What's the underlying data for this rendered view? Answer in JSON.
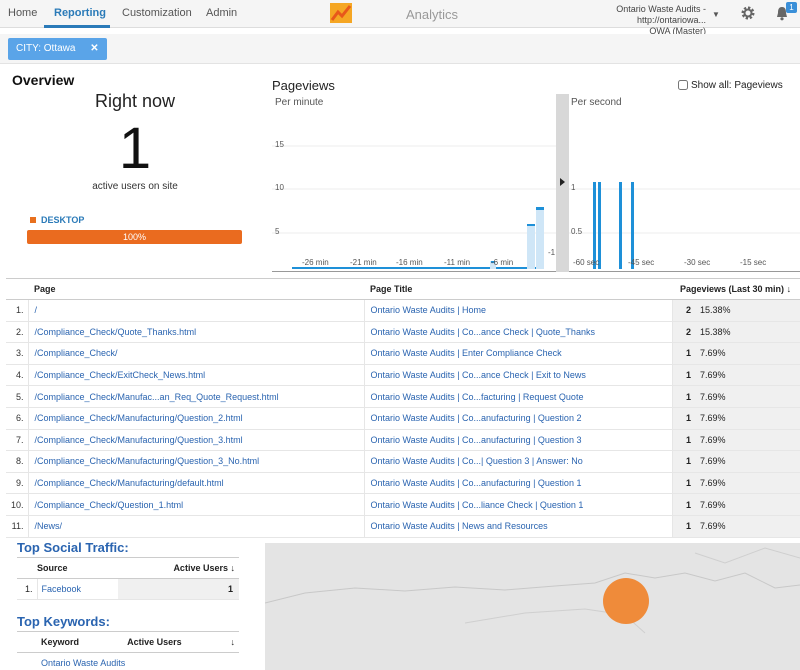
{
  "nav": {
    "home": "Home",
    "reporting": "Reporting",
    "customization": "Customization",
    "admin": "Admin",
    "product": "Analytics",
    "account_line1": "Ontario Waste Audits - http://ontariowa...",
    "account_line2": "OWA (Master)",
    "notification_count": "1"
  },
  "filter": {
    "label": "CITY: Ottawa",
    "close": "✕"
  },
  "overview": {
    "title": "Overview",
    "right_now": "Right now",
    "active_count": "1",
    "active_label": "active users on site",
    "device": "DESKTOP",
    "device_pct": "100%"
  },
  "pageviews": {
    "title": "Pageviews",
    "show_all": "Show all: Pageviews",
    "per_minute": "Per minute",
    "per_second": "Per second",
    "minute_ticks": [
      "-26 min",
      "-21 min",
      "-16 min",
      "-11 min",
      "-6 min",
      "-1"
    ],
    "minute_y": [
      "15",
      "10",
      "5"
    ],
    "second_ticks": [
      "-60 sec",
      "-45 sec",
      "-30 sec",
      "-15 sec"
    ],
    "second_y": [
      "1",
      "0.5"
    ]
  },
  "colors": {
    "accent": "#2a7ab8",
    "orange": "#ea6b1f",
    "bar_blue": "#1e90d8"
  },
  "pages_table": {
    "headers": {
      "page": "Page",
      "title": "Page Title",
      "views": "Pageviews (Last 30 min)"
    },
    "rows": [
      {
        "idx": "1.",
        "page": "/",
        "title": "Ontario Waste Audits | Home",
        "count": "2",
        "pct": "15.38%"
      },
      {
        "idx": "2.",
        "page": "/Compliance_Check/Quote_Thanks.html",
        "title": "Ontario Waste Audits | Co...ance Check | Quote_Thanks",
        "count": "2",
        "pct": "15.38%"
      },
      {
        "idx": "3.",
        "page": "/Compliance_Check/",
        "title": "Ontario Waste Audits | Enter Compliance Check",
        "count": "1",
        "pct": "7.69%"
      },
      {
        "idx": "4.",
        "page": "/Compliance_Check/ExitCheck_News.html",
        "title": "Ontario Waste Audits | Co...ance Check | Exit to News",
        "count": "1",
        "pct": "7.69%"
      },
      {
        "idx": "5.",
        "page": "/Compliance_Check/Manufac...an_Req_Quote_Request.html",
        "title": "Ontario Waste Audits | Co...facturing | Request Quote",
        "count": "1",
        "pct": "7.69%"
      },
      {
        "idx": "6.",
        "page": "/Compliance_Check/Manufacturing/Question_2.html",
        "title": "Ontario Waste Audits | Co...anufacturing | Question 2",
        "count": "1",
        "pct": "7.69%"
      },
      {
        "idx": "7.",
        "page": "/Compliance_Check/Manufacturing/Question_3.html",
        "title": "Ontario Waste Audits | Co...anufacturing | Question 3",
        "count": "1",
        "pct": "7.69%"
      },
      {
        "idx": "8.",
        "page": "/Compliance_Check/Manufacturing/Question_3_No.html",
        "title": "Ontario Waste Audits | Co...| Question 3 | Answer: No",
        "count": "1",
        "pct": "7.69%"
      },
      {
        "idx": "9.",
        "page": "/Compliance_Check/Manufacturing/default.html",
        "title": "Ontario Waste Audits | Co...anufacturing | Question 1",
        "count": "1",
        "pct": "7.69%"
      },
      {
        "idx": "10.",
        "page": "/Compliance_Check/Question_1.html",
        "title": "Ontario Waste Audits | Co...liance Check | Question 1",
        "count": "1",
        "pct": "7.69%"
      },
      {
        "idx": "11.",
        "page": "/News/",
        "title": "Ontario Waste Audits | News and Resources",
        "count": "1",
        "pct": "7.69%"
      }
    ]
  },
  "social": {
    "title": "Top Social Traffic:",
    "headers": {
      "source": "Source",
      "users": "Active Users"
    },
    "rows": [
      {
        "idx": "1.",
        "source": "Facebook",
        "users": "1"
      }
    ]
  },
  "keywords": {
    "title": "Top Keywords:",
    "headers": {
      "keyword": "Keyword",
      "users": "Active Users"
    },
    "rows": [
      {
        "keyword": "Ontario Waste Audits"
      }
    ]
  }
}
